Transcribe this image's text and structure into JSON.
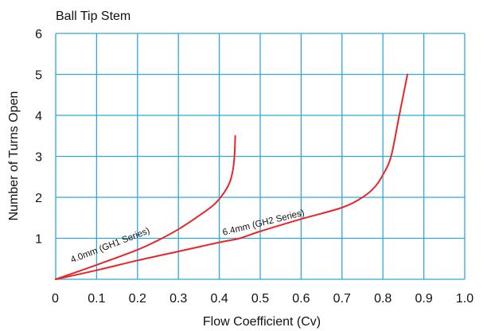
{
  "chart_data": {
    "type": "line",
    "title": "Ball Tip Stem",
    "xlabel": "Flow Coefficient (Cv)",
    "ylabel": "Number of Turns Open",
    "xlim": [
      0,
      1.0
    ],
    "ylim": [
      0,
      6
    ],
    "x_ticks": [
      "0",
      "0.1",
      "0.2",
      "0.3",
      "0.4",
      "0.5",
      "0.6",
      "0.7",
      "0.8",
      "0.9",
      "1.0"
    ],
    "y_ticks": [
      "1",
      "2",
      "3",
      "4",
      "5",
      "6"
    ],
    "grid": true,
    "series": [
      {
        "name": "4.0mm (GH1 Series)",
        "color": "#e8262a",
        "points": [
          [
            0,
            0
          ],
          [
            0.1,
            0.35
          ],
          [
            0.2,
            0.72
          ],
          [
            0.25,
            0.95
          ],
          [
            0.3,
            1.22
          ],
          [
            0.35,
            1.55
          ],
          [
            0.39,
            1.85
          ],
          [
            0.42,
            2.25
          ],
          [
            0.432,
            2.6
          ],
          [
            0.437,
            3.0
          ],
          [
            0.439,
            3.5
          ]
        ]
      },
      {
        "name": "6.4mm (GH2 Series)",
        "color": "#e8262a",
        "points": [
          [
            0,
            0
          ],
          [
            0.1,
            0.22
          ],
          [
            0.2,
            0.46
          ],
          [
            0.3,
            0.68
          ],
          [
            0.4,
            0.9
          ],
          [
            0.45,
            1.0
          ],
          [
            0.5,
            1.17
          ],
          [
            0.6,
            1.47
          ],
          [
            0.7,
            1.75
          ],
          [
            0.75,
            2.0
          ],
          [
            0.78,
            2.25
          ],
          [
            0.8,
            2.55
          ],
          [
            0.82,
            3.0
          ],
          [
            0.84,
            4.0
          ],
          [
            0.86,
            5.0
          ]
        ]
      }
    ]
  }
}
